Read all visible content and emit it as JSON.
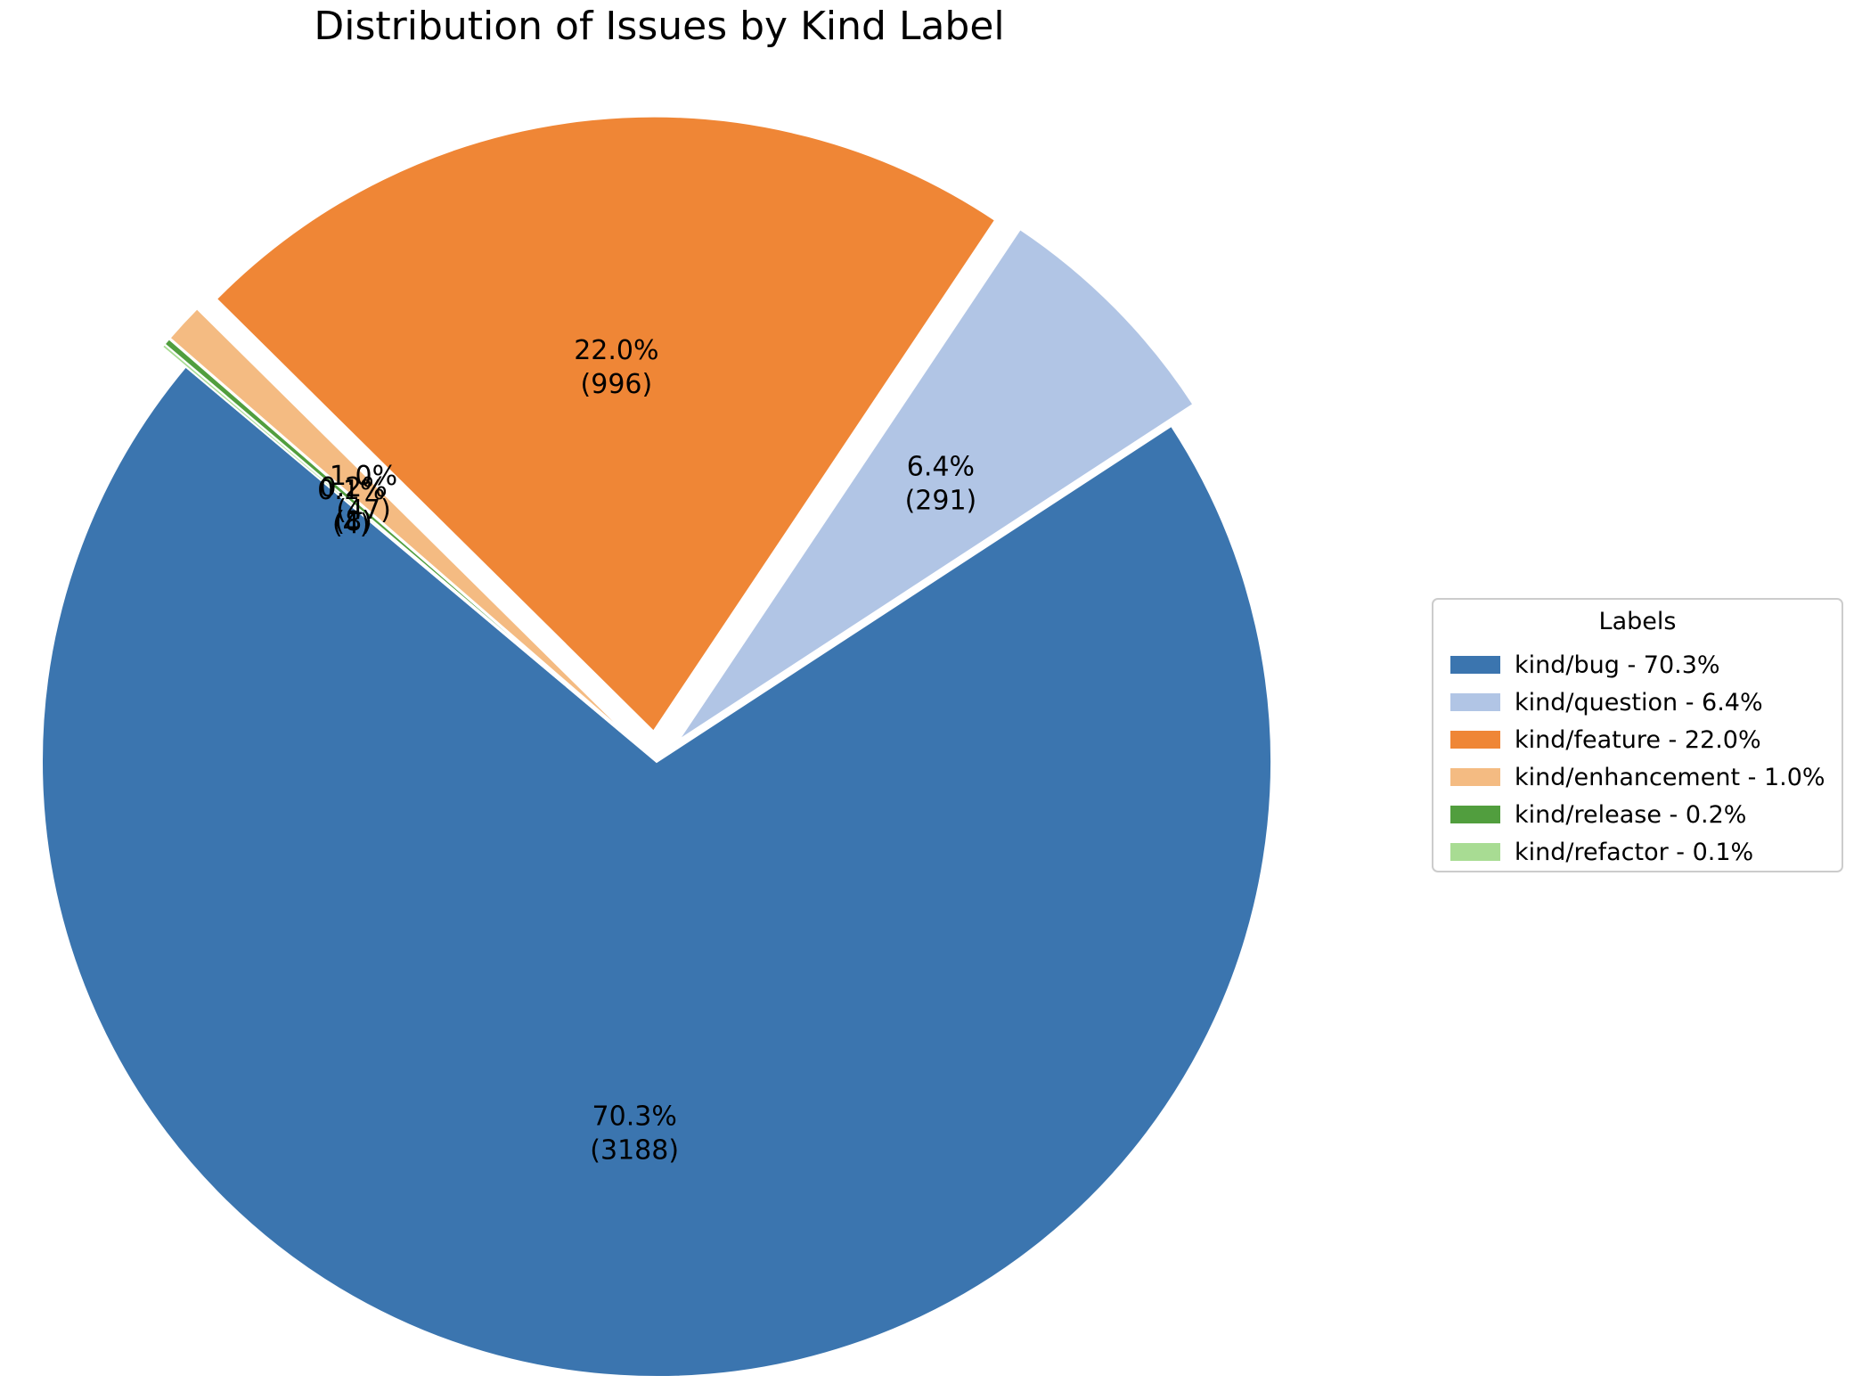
{
  "chart_data": {
    "type": "pie",
    "title": "Distribution of Issues by Kind Label",
    "start_angle_deg": 140,
    "direction": "counterclockwise",
    "slices": [
      {
        "label": "kind/bug",
        "value": 3188,
        "percent": "70.3%",
        "count_label": "(3188)",
        "legend": "kind/bug - 70.3%",
        "color": "#3b75af",
        "exploded": false
      },
      {
        "label": "kind/question",
        "value": 291,
        "percent": "6.4%",
        "count_label": "(291)",
        "legend": "kind/question - 6.4%",
        "color": "#b1c5e5",
        "exploded": true
      },
      {
        "label": "kind/feature",
        "value": 996,
        "percent": "22.0%",
        "count_label": "(996)",
        "legend": "kind/feature - 22.0%",
        "color": "#ef8636",
        "exploded": true
      },
      {
        "label": "kind/enhancement",
        "value": 47,
        "percent": "1.0%",
        "count_label": "(47)",
        "legend": "kind/enhancement - 1.0%",
        "color": "#f4bb82",
        "exploded": true
      },
      {
        "label": "kind/release",
        "value": 8,
        "percent": "0.2%",
        "count_label": "(8)",
        "legend": "kind/release - 0.2%",
        "color": "#519e3e",
        "exploded": true
      },
      {
        "label": "kind/refactor",
        "value": 4,
        "percent": "0.1%",
        "count_label": "(4)",
        "legend": "kind/refactor - 0.1%",
        "color": "#a8dc93",
        "exploded": true
      }
    ],
    "legend": {
      "title": "Labels",
      "placement": "right"
    }
  }
}
